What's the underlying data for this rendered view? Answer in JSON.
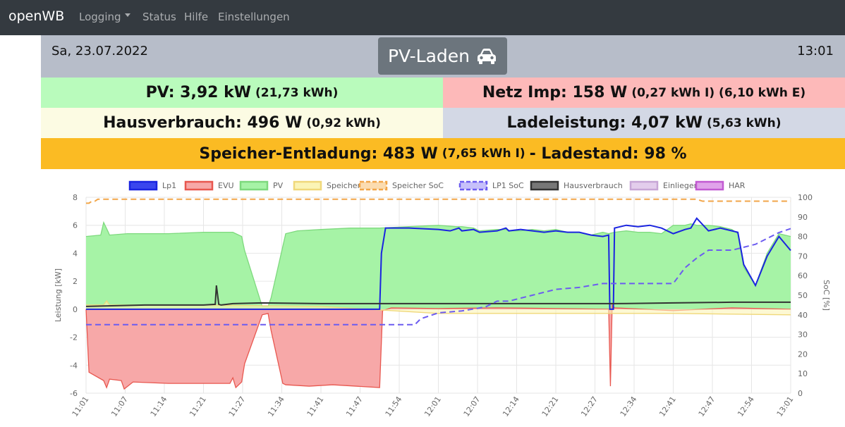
{
  "nav": {
    "brand": "openWB",
    "items": [
      {
        "label": "Logging",
        "dropdown": true
      },
      {
        "label": "Status"
      },
      {
        "label": "Hilfe"
      },
      {
        "label": "Einstellungen"
      }
    ]
  },
  "header": {
    "date": "Sa, 23.07.2022",
    "time": "13:01",
    "mode": "PV-Laden",
    "mode_icon": "car-icon"
  },
  "tiles": {
    "pv": {
      "main": "PV: 3,92 kW",
      "sub": "(21,73 kWh)",
      "bg": "#b9fbbc"
    },
    "netz": {
      "main": "Netz Imp: 158 W",
      "sub": "(0,27 kWh I) (6,10 kWh E)",
      "bg": "#fdb9b9"
    },
    "haus": {
      "main": "Hausverbrauch: 496 W",
      "sub": "(0,92 kWh)",
      "bg": "#fcfbe3"
    },
    "lade": {
      "main": "Ladeleistung: 4,07 kW",
      "sub": "(5,63 kWh)",
      "bg": "#d3d8e5"
    },
    "speicher": {
      "main": "Speicher-Entladung: 483 W",
      "sub": "(7,65 kWh I)",
      "tail": "- Ladestand: 98 %",
      "bg": "#fbbb23"
    }
  },
  "chart_data": {
    "type": "line",
    "ylabel": "Leistung [kW]",
    "y2label": "SoC [%]",
    "ylim": [
      -6,
      8
    ],
    "y2lim": [
      0,
      100
    ],
    "yticks": [
      "8",
      "6",
      "4",
      "2",
      "0",
      "-2",
      "-4",
      "-6"
    ],
    "y2ticks": [
      "100",
      "90",
      "80",
      "70",
      "60",
      "50",
      "40",
      "30",
      "20",
      "10",
      "0"
    ],
    "xticks": [
      "11:01",
      "11:07",
      "11:14",
      "11:21",
      "11:27",
      "11:34",
      "11:41",
      "11:47",
      "11:54",
      "12:01",
      "12:07",
      "12:14",
      "12:21",
      "12:27",
      "12:34",
      "12:41",
      "12:47",
      "12:54",
      "13:01"
    ],
    "legend_position": "top",
    "grid": true,
    "legend": [
      {
        "name": "Lp1",
        "color": "#1a24e0",
        "fill": "#3a46ee",
        "dashed": false
      },
      {
        "name": "EVU",
        "color": "#e8574f",
        "fill": "#f7a8a8",
        "dashed": false
      },
      {
        "name": "PV",
        "color": "#7dd97d",
        "fill": "#a6f3a6",
        "dashed": false
      },
      {
        "name": "Speicher",
        "color": "#f0d87a",
        "fill": "#fbf4b6",
        "dashed": false
      },
      {
        "name": "Speicher SoC",
        "color": "#f2a649",
        "fill": "#fbdcb0",
        "dashed": true
      },
      {
        "name": "LP1 SoC",
        "color": "#6c5cf0",
        "fill": "#c6c0fa",
        "dashed": true
      },
      {
        "name": "Hausverbrauch",
        "color": "#333333",
        "fill": "#777777",
        "dashed": false
      },
      {
        "name": "Einlieger",
        "color": "#c7a6d6",
        "fill": "#e3cdec",
        "dashed": false
      },
      {
        "name": "HAR",
        "color": "#c25ad2",
        "fill": "#e0a3ea",
        "dashed": false
      }
    ],
    "series": [
      {
        "name": "PV",
        "x": [
          0,
          2.5,
          3,
          3.8,
          4,
          7,
          14,
          20,
          24.5,
          25,
          25.5,
          26.5,
          27,
          30,
          31,
          31.5,
          34,
          36,
          40,
          45,
          50,
          55,
          60,
          63,
          63.5,
          64,
          66,
          67,
          70,
          71.5,
          72,
          74,
          76,
          78,
          80,
          82,
          84,
          86,
          88,
          89,
          90,
          92,
          94,
          96,
          98,
          100,
          102,
          103,
          104,
          106,
          108,
          110,
          111,
          112,
          114,
          116,
          118,
          120
        ],
        "y": [
          5.2,
          5.3,
          6.2,
          5.5,
          5.3,
          5.4,
          5.4,
          5.5,
          5.5,
          5.5,
          5.4,
          5.2,
          4.2,
          0.2,
          0.2,
          0.8,
          5.4,
          5.6,
          5.7,
          5.8,
          5.8,
          5.9,
          6.0,
          5.9,
          5.9,
          5.9,
          5.8,
          5.6,
          5.7,
          5.7,
          5.6,
          5.6,
          5.7,
          5.6,
          5.7,
          5.5,
          5.5,
          5.3,
          5.5,
          5.4,
          5.5,
          5.6,
          5.5,
          5.5,
          5.4,
          6.0,
          6.0,
          6.1,
          6.0,
          6.0,
          5.9,
          5.7,
          5.4,
          3.0,
          1.7,
          4.0,
          5.4,
          5.2
        ]
      },
      {
        "name": "Lp1",
        "x": [
          0,
          50,
          50.3,
          51,
          55,
          60,
          62,
          63.5,
          64,
          66,
          67,
          70,
          71.5,
          72,
          74,
          76,
          78,
          80,
          82,
          84,
          86,
          88,
          89,
          89.2,
          89.8,
          90,
          92,
          94,
          96,
          98,
          100,
          102,
          103,
          104,
          106,
          108,
          110,
          111,
          112,
          114,
          116,
          118,
          120
        ],
        "y": [
          0,
          0,
          4.0,
          5.8,
          5.8,
          5.7,
          5.6,
          5.8,
          5.6,
          5.7,
          5.5,
          5.6,
          5.8,
          5.6,
          5.7,
          5.6,
          5.5,
          5.6,
          5.5,
          5.5,
          5.3,
          5.2,
          5.3,
          0,
          0,
          5.8,
          6.0,
          5.9,
          6.0,
          5.8,
          5.4,
          5.7,
          5.8,
          6.5,
          5.6,
          5.8,
          5.6,
          5.5,
          3.2,
          1.7,
          3.8,
          5.2,
          4.2
        ]
      },
      {
        "name": "EVU",
        "x": [
          0,
          0.5,
          3,
          3.5,
          4,
          6,
          6.5,
          8,
          14,
          20,
          24.5,
          25,
          25.5,
          26.5,
          27,
          30,
          31,
          31.5,
          33.5,
          34,
          38,
          42,
          46,
          50,
          50.5,
          52,
          60,
          70,
          80,
          89,
          89.3,
          89.6,
          90,
          100,
          110,
          120
        ],
        "y": [
          0,
          -4.5,
          -5.1,
          -5.6,
          -5.0,
          -5.1,
          -5.7,
          -5.2,
          -5.3,
          -5.3,
          -5.3,
          -4.9,
          -5.6,
          -5.2,
          -3.9,
          -0.4,
          -0.3,
          -1.5,
          -5.3,
          -5.4,
          -5.5,
          -5.4,
          -5.5,
          -5.6,
          -0.1,
          0.1,
          0.05,
          0.1,
          0.05,
          0,
          -5.5,
          0.3,
          0.1,
          -0.1,
          0.1,
          0.0
        ]
      },
      {
        "name": "Hausverbrauch",
        "x": [
          0,
          10,
          20,
          22,
          22.2,
          22.6,
          23,
          25,
          30,
          40,
          50,
          60,
          70,
          80,
          90,
          100,
          110,
          120
        ],
        "y": [
          0.2,
          0.3,
          0.3,
          0.35,
          1.7,
          0.35,
          0.3,
          0.4,
          0.45,
          0.4,
          0.4,
          0.4,
          0.4,
          0.4,
          0.4,
          0.45,
          0.5,
          0.5
        ]
      },
      {
        "name": "Speicher",
        "x": [
          0,
          3,
          3.5,
          4,
          6,
          20,
          40,
          60,
          80,
          100,
          120
        ],
        "y": [
          0.3,
          0.3,
          0.6,
          0.3,
          0.3,
          0.3,
          0.2,
          -0.3,
          -0.3,
          -0.3,
          -0.4
        ]
      },
      {
        "name": "Speicher SoC",
        "y_axis": "right",
        "x": [
          0,
          0.5,
          1,
          1.5,
          2,
          20,
          40,
          60,
          70,
          80,
          90,
          92,
          100,
          104,
          105,
          110,
          120
        ],
        "y": [
          97,
          97,
          98,
          98,
          99,
          99,
          99,
          99,
          99,
          99,
          99,
          99,
          99,
          99,
          98,
          98,
          98
        ]
      },
      {
        "name": "LP1 SoC",
        "y_axis": "right",
        "x": [
          0,
          56,
          57,
          60,
          64,
          68,
          70,
          72,
          76,
          80,
          84,
          88,
          92,
          94,
          96,
          100,
          102,
          104,
          106,
          110,
          114,
          118,
          120
        ],
        "y": [
          35,
          35,
          38,
          41,
          42,
          44,
          47,
          47,
          50,
          53,
          54,
          56,
          56,
          56,
          56,
          56,
          64,
          69,
          73,
          73,
          76,
          82,
          84
        ]
      }
    ]
  }
}
